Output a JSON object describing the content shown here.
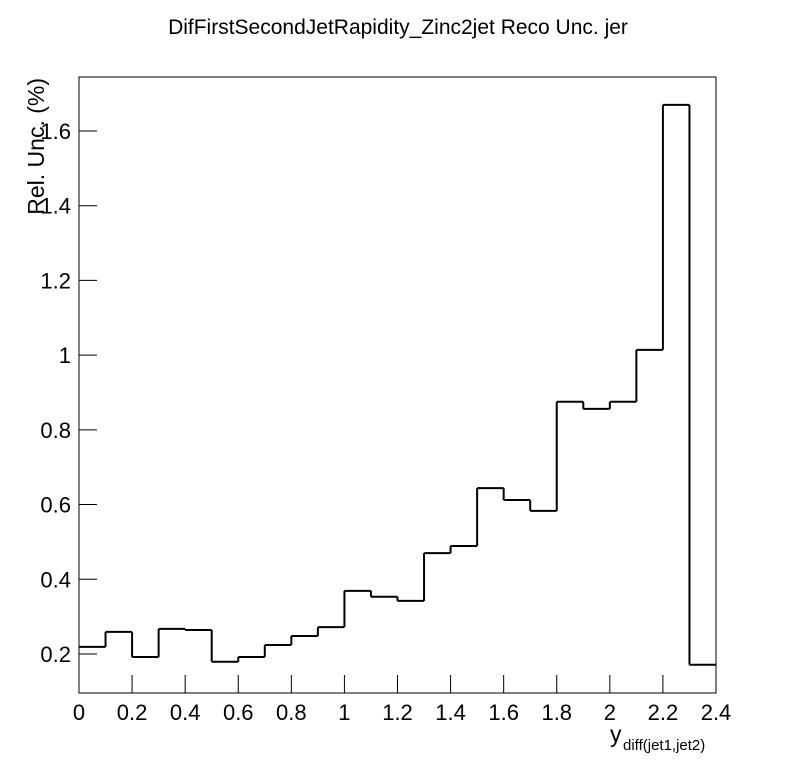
{
  "chart_data": {
    "type": "histogram",
    "title": "DifFirstSecondJetRapidity_Zinc2jet Reco Unc. jer",
    "xlabel": {
      "text": "y",
      "subscript": "diff(jet1,jet2)"
    },
    "ylabel": "Rel. Unc. (%)",
    "bins": [
      0,
      0.1,
      0.2,
      0.3,
      0.4,
      0.5,
      0.6,
      0.7,
      0.8,
      0.9,
      1,
      1.1,
      1.2,
      1.3,
      1.4,
      1.5,
      1.6,
      1.7,
      1.8,
      1.9,
      2,
      2.1,
      2.2,
      2.3,
      2.4
    ],
    "counts": [
      0.219,
      0.259,
      0.192,
      0.267,
      0.264,
      0.179,
      0.192,
      0.224,
      0.248,
      0.272,
      0.369,
      0.353,
      0.342,
      0.47,
      0.489,
      0.644,
      0.612,
      0.583,
      0.875,
      0.856,
      0.875,
      1.014,
      1.67,
      0.171
    ],
    "color": "#000000",
    "xlim": [
      0,
      2.4
    ],
    "xticks": [
      0,
      0.2,
      0.4,
      0.6,
      0.8,
      1,
      1.2,
      1.4,
      1.6,
      1.8,
      2,
      2.2,
      2.4
    ],
    "ylim": [
      0.0955,
      1.7445
    ],
    "yticks": [
      0.2,
      0.4,
      0.6,
      0.8,
      1,
      1.2,
      1.4,
      1.6
    ]
  }
}
